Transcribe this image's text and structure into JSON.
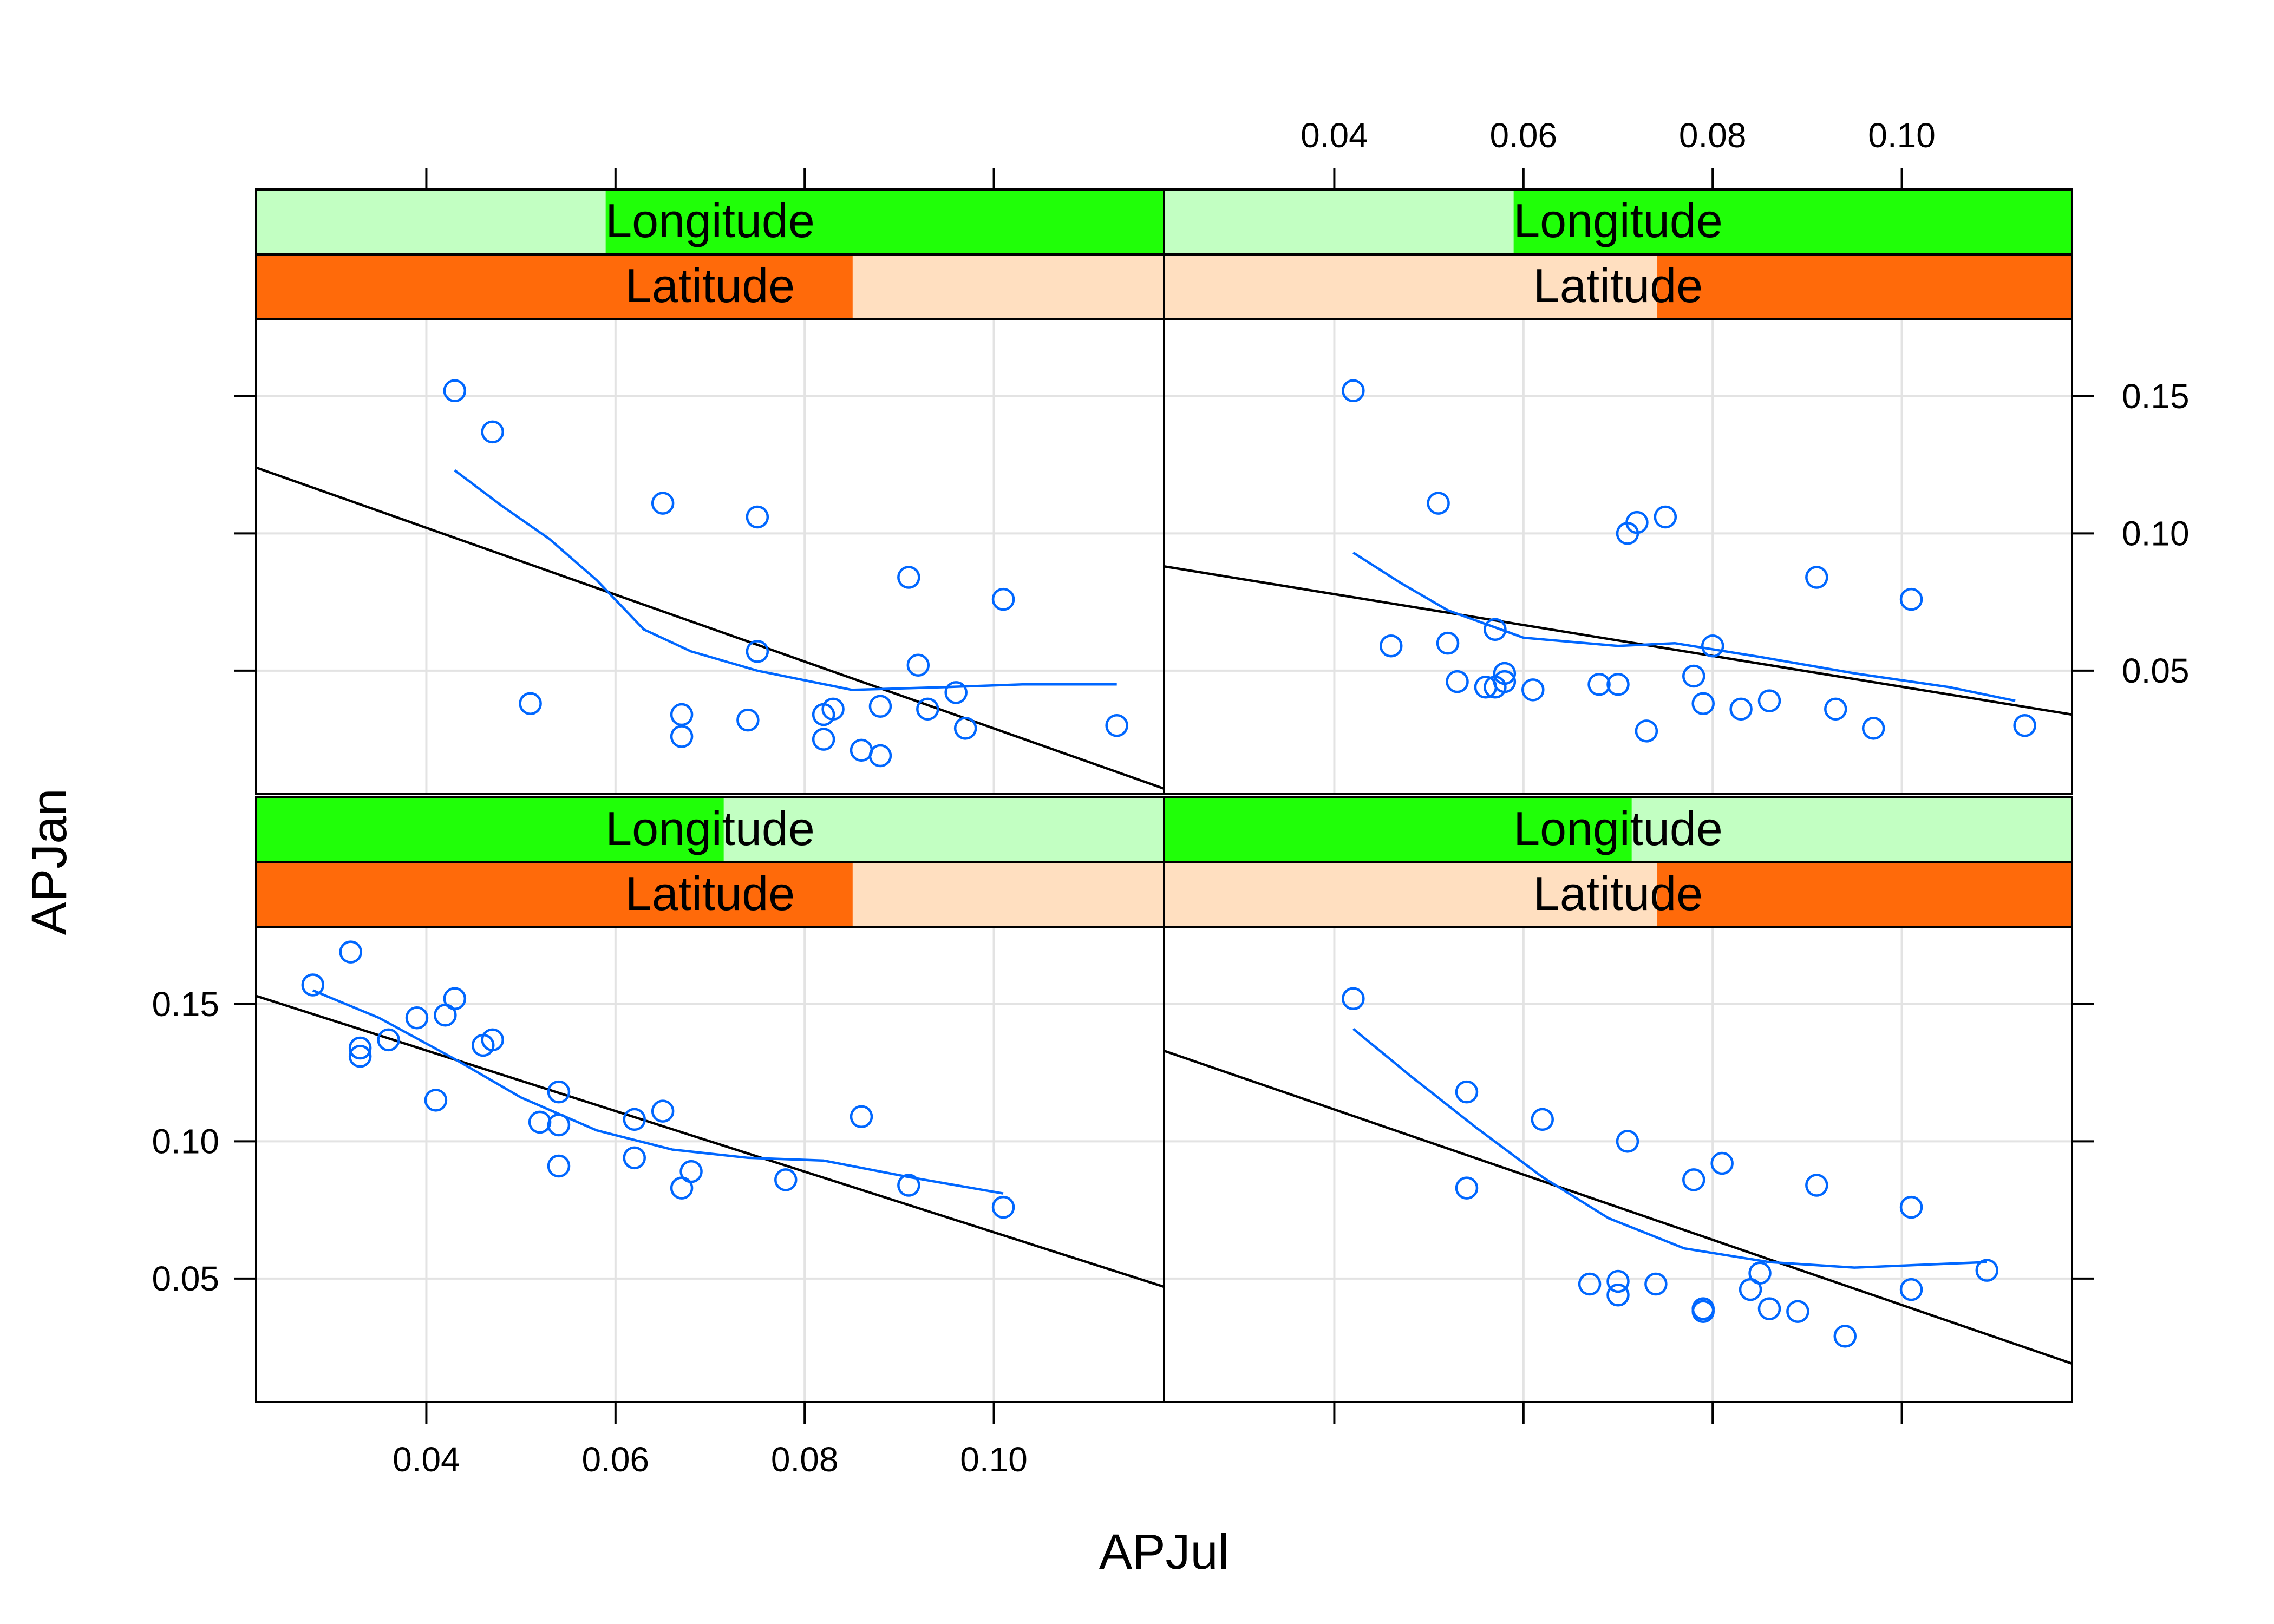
{
  "chart_data": {
    "type": "scatter",
    "xlabel": "APJul",
    "ylabel": "APJan",
    "xlim": [
      0.022,
      0.118
    ],
    "ylim": [
      0.005,
      0.178
    ],
    "x_ticks": [
      0.04,
      0.06,
      0.08,
      0.1
    ],
    "x_tick_labels": [
      "0.04",
      "0.06",
      "0.08",
      "0.10"
    ],
    "y_ticks": [
      0.05,
      0.1,
      0.15
    ],
    "y_tick_labels": [
      "0.05",
      "0.10",
      "0.15"
    ],
    "grid": true,
    "colors": {
      "points": "#0067ff",
      "loess": "#0067ff",
      "fit_line": "#000000",
      "grid": "#e3e3e3",
      "longitude_light": "#c2ffc2",
      "longitude_dark": "#20ff08",
      "latitude_light": "#ffdfc0",
      "latitude_dark": "#ff6a0a"
    },
    "panels": [
      {
        "position": "bottom-left",
        "strips": {
          "longitude": {
            "label": "Longitude",
            "dark_range": [
              0.0,
              0.515
            ]
          },
          "latitude": {
            "label": "Latitude",
            "dark_range": [
              0.0,
              0.657
            ]
          }
        },
        "points": [
          [
            0.028,
            0.157
          ],
          [
            0.032,
            0.169
          ],
          [
            0.033,
            0.134
          ],
          [
            0.033,
            0.131
          ],
          [
            0.036,
            0.137
          ],
          [
            0.039,
            0.145
          ],
          [
            0.041,
            0.115
          ],
          [
            0.042,
            0.146
          ],
          [
            0.043,
            0.152
          ],
          [
            0.046,
            0.135
          ],
          [
            0.047,
            0.137
          ],
          [
            0.052,
            0.107
          ],
          [
            0.054,
            0.118
          ],
          [
            0.054,
            0.106
          ],
          [
            0.054,
            0.091
          ],
          [
            0.062,
            0.108
          ],
          [
            0.062,
            0.094
          ],
          [
            0.065,
            0.111
          ],
          [
            0.067,
            0.083
          ],
          [
            0.068,
            0.089
          ],
          [
            0.078,
            0.086
          ],
          [
            0.086,
            0.109
          ],
          [
            0.091,
            0.084
          ],
          [
            0.101,
            0.076
          ]
        ],
        "fit_line": [
          [
            0.022,
            0.153
          ],
          [
            0.118,
            0.047
          ]
        ],
        "loess": [
          [
            0.028,
            0.155
          ],
          [
            0.035,
            0.145
          ],
          [
            0.043,
            0.13
          ],
          [
            0.05,
            0.116
          ],
          [
            0.058,
            0.104
          ],
          [
            0.066,
            0.097
          ],
          [
            0.074,
            0.094
          ],
          [
            0.082,
            0.093
          ],
          [
            0.091,
            0.087
          ],
          [
            0.101,
            0.081
          ]
        ]
      },
      {
        "position": "bottom-right",
        "strips": {
          "longitude": {
            "label": "Longitude",
            "dark_range": [
              0.0,
              0.515
            ]
          },
          "latitude": {
            "label": "Latitude",
            "dark_range": [
              0.543,
              1.0
            ]
          }
        },
        "points": [
          [
            0.042,
            0.152
          ],
          [
            0.054,
            0.118
          ],
          [
            0.054,
            0.083
          ],
          [
            0.062,
            0.108
          ],
          [
            0.067,
            0.048
          ],
          [
            0.07,
            0.049
          ],
          [
            0.07,
            0.044
          ],
          [
            0.071,
            0.1
          ],
          [
            0.074,
            0.048
          ],
          [
            0.078,
            0.086
          ],
          [
            0.079,
            0.039
          ],
          [
            0.079,
            0.038
          ],
          [
            0.081,
            0.092
          ],
          [
            0.084,
            0.046
          ],
          [
            0.085,
            0.052
          ],
          [
            0.086,
            0.039
          ],
          [
            0.089,
            0.038
          ],
          [
            0.091,
            0.084
          ],
          [
            0.094,
            0.029
          ],
          [
            0.101,
            0.076
          ],
          [
            0.101,
            0.046
          ],
          [
            0.109,
            0.053
          ]
        ],
        "fit_line": [
          [
            0.022,
            0.133
          ],
          [
            0.118,
            0.019
          ]
        ],
        "loess": [
          [
            0.042,
            0.141
          ],
          [
            0.048,
            0.124
          ],
          [
            0.055,
            0.105
          ],
          [
            0.062,
            0.087
          ],
          [
            0.069,
            0.072
          ],
          [
            0.077,
            0.061
          ],
          [
            0.086,
            0.056
          ],
          [
            0.095,
            0.054
          ],
          [
            0.102,
            0.055
          ],
          [
            0.109,
            0.056
          ]
        ]
      },
      {
        "position": "top-left",
        "strips": {
          "longitude": {
            "label": "Longitude",
            "dark_range": [
              0.385,
              1.0
            ]
          },
          "latitude": {
            "label": "Latitude",
            "dark_range": [
              0.0,
              0.657
            ]
          }
        },
        "points": [
          [
            0.043,
            0.152
          ],
          [
            0.047,
            0.137
          ],
          [
            0.051,
            0.038
          ],
          [
            0.065,
            0.111
          ],
          [
            0.067,
            0.034
          ],
          [
            0.067,
            0.026
          ],
          [
            0.074,
            0.032
          ],
          [
            0.075,
            0.106
          ],
          [
            0.075,
            0.057
          ],
          [
            0.082,
            0.034
          ],
          [
            0.082,
            0.025
          ],
          [
            0.083,
            0.036
          ],
          [
            0.086,
            0.021
          ],
          [
            0.088,
            0.037
          ],
          [
            0.088,
            0.019
          ],
          [
            0.091,
            0.084
          ],
          [
            0.092,
            0.052
          ],
          [
            0.093,
            0.036
          ],
          [
            0.096,
            0.042
          ],
          [
            0.097,
            0.029
          ],
          [
            0.101,
            0.076
          ],
          [
            0.113,
            0.03
          ]
        ],
        "fit_line": [
          [
            0.022,
            0.124
          ],
          [
            0.118,
            0.007
          ]
        ],
        "loess": [
          [
            0.043,
            0.123
          ],
          [
            0.048,
            0.11
          ],
          [
            0.053,
            0.098
          ],
          [
            0.058,
            0.083
          ],
          [
            0.063,
            0.065
          ],
          [
            0.068,
            0.057
          ],
          [
            0.075,
            0.05
          ],
          [
            0.085,
            0.043
          ],
          [
            0.095,
            0.044
          ],
          [
            0.103,
            0.045
          ],
          [
            0.113,
            0.045
          ]
        ]
      },
      {
        "position": "top-right",
        "strips": {
          "longitude": {
            "label": "Longitude",
            "dark_range": [
              0.385,
              1.0
            ]
          },
          "latitude": {
            "label": "Latitude",
            "dark_range": [
              0.543,
              1.0
            ]
          }
        },
        "points": [
          [
            0.042,
            0.152
          ],
          [
            0.046,
            0.059
          ],
          [
            0.051,
            0.111
          ],
          [
            0.052,
            0.06
          ],
          [
            0.053,
            0.046
          ],
          [
            0.056,
            0.044
          ],
          [
            0.057,
            0.065
          ],
          [
            0.057,
            0.044
          ],
          [
            0.058,
            0.049
          ],
          [
            0.058,
            0.046
          ],
          [
            0.061,
            0.043
          ],
          [
            0.068,
            0.045
          ],
          [
            0.07,
            0.045
          ],
          [
            0.071,
            0.1
          ],
          [
            0.072,
            0.104
          ],
          [
            0.073,
            0.028
          ],
          [
            0.075,
            0.106
          ],
          [
            0.078,
            0.048
          ],
          [
            0.079,
            0.038
          ],
          [
            0.08,
            0.059
          ],
          [
            0.083,
            0.036
          ],
          [
            0.086,
            0.039
          ],
          [
            0.091,
            0.084
          ],
          [
            0.093,
            0.036
          ],
          [
            0.097,
            0.029
          ],
          [
            0.101,
            0.076
          ],
          [
            0.113,
            0.03
          ]
        ],
        "fit_line": [
          [
            0.022,
            0.088
          ],
          [
            0.118,
            0.034
          ]
        ],
        "loess": [
          [
            0.042,
            0.093
          ],
          [
            0.047,
            0.082
          ],
          [
            0.052,
            0.072
          ],
          [
            0.06,
            0.062
          ],
          [
            0.07,
            0.059
          ],
          [
            0.076,
            0.06
          ],
          [
            0.085,
            0.055
          ],
          [
            0.095,
            0.049
          ],
          [
            0.105,
            0.044
          ],
          [
            0.112,
            0.039
          ]
        ]
      }
    ]
  }
}
